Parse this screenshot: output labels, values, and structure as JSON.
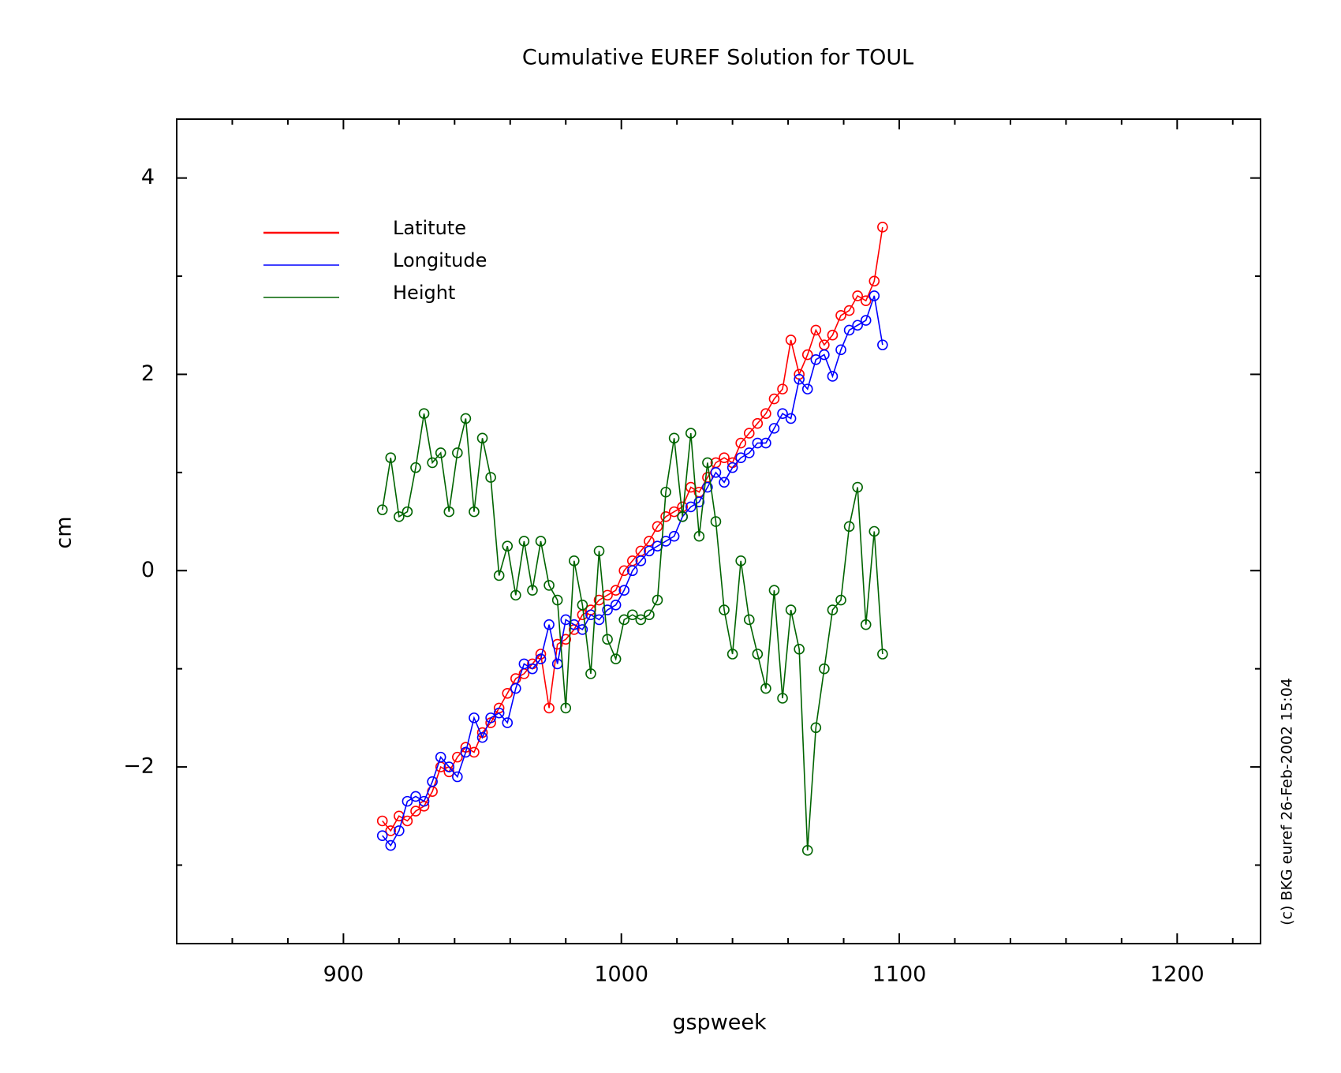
{
  "chart_data": {
    "type": "line",
    "title": "Cumulative EUREF Solution for TOUL",
    "xlabel": "gspweek",
    "ylabel": "cm",
    "annotation": "(c) BKG euref 26-Feb-2002 15:04",
    "x": [
      914,
      917,
      920,
      923,
      926,
      929,
      932,
      935,
      938,
      941,
      944,
      947,
      950,
      953,
      956,
      959,
      962,
      965,
      968,
      971,
      974,
      977,
      980,
      983,
      986,
      989,
      992,
      995,
      998,
      1001,
      1004,
      1007,
      1010,
      1013,
      1016,
      1019,
      1022,
      1025,
      1028,
      1031,
      1034,
      1037,
      1040,
      1043,
      1046,
      1049,
      1052,
      1055,
      1058,
      1061,
      1064,
      1067,
      1070,
      1073,
      1076,
      1079,
      1082,
      1085,
      1088,
      1091,
      1094
    ],
    "series": [
      {
        "name": "Latitute",
        "color": "#ff0000",
        "values": [
          -2.55,
          -2.65,
          -2.5,
          -2.55,
          -2.45,
          -2.4,
          -2.25,
          -2.0,
          -2.05,
          -1.9,
          -1.8,
          -1.85,
          -1.65,
          -1.55,
          -1.4,
          -1.25,
          -1.1,
          -1.05,
          -0.95,
          -0.85,
          -1.4,
          -0.75,
          -0.7,
          -0.6,
          -0.45,
          -0.4,
          -0.3,
          -0.25,
          -0.2,
          0.0,
          0.1,
          0.2,
          0.3,
          0.45,
          0.55,
          0.6,
          0.65,
          0.85,
          0.8,
          0.95,
          1.1,
          1.15,
          1.1,
          1.3,
          1.4,
          1.5,
          1.6,
          1.75,
          1.85,
          2.35,
          2.0,
          2.2,
          2.45,
          2.3,
          2.4,
          2.6,
          2.65,
          2.8,
          2.75,
          2.95,
          3.5
        ]
      },
      {
        "name": "Longitude",
        "color": "#0000ff",
        "values": [
          -2.7,
          -2.8,
          -2.65,
          -2.35,
          -2.3,
          -2.35,
          -2.15,
          -1.9,
          -2.0,
          -2.1,
          -1.85,
          -1.5,
          -1.7,
          -1.5,
          -1.45,
          -1.55,
          -1.2,
          -0.95,
          -1.0,
          -0.9,
          -0.55,
          -0.95,
          -0.5,
          -0.55,
          -0.6,
          -0.45,
          -0.5,
          -0.4,
          -0.35,
          -0.2,
          0.0,
          0.1,
          0.2,
          0.25,
          0.3,
          0.35,
          0.55,
          0.65,
          0.7,
          0.85,
          1.0,
          0.9,
          1.05,
          1.15,
          1.2,
          1.3,
          1.3,
          1.45,
          1.6,
          1.55,
          1.95,
          1.85,
          2.15,
          2.2,
          1.98,
          2.25,
          2.45,
          2.5,
          2.55,
          2.8,
          2.3
        ]
      },
      {
        "name": "Height",
        "color": "#006400",
        "values": [
          0.62,
          1.15,
          0.55,
          0.6,
          1.05,
          1.6,
          1.1,
          1.2,
          0.6,
          1.2,
          1.55,
          0.6,
          1.35,
          0.95,
          -0.05,
          0.25,
          -0.25,
          0.3,
          -0.2,
          0.3,
          -0.15,
          -0.3,
          -1.4,
          0.1,
          -0.35,
          -1.05,
          0.2,
          -0.7,
          -0.9,
          -0.5,
          -0.45,
          -0.5,
          -0.45,
          -0.3,
          0.8,
          1.35,
          0.55,
          1.4,
          0.35,
          1.1,
          0.5,
          -0.4,
          -0.85,
          0.1,
          -0.5,
          -0.85,
          -1.2,
          -0.2,
          -1.3,
          -0.4,
          -0.8,
          -2.85,
          -1.6,
          -1.0,
          -0.4,
          -0.3,
          0.45,
          0.85,
          -0.55,
          0.4,
          -0.85
        ]
      }
    ],
    "xlim": [
      840,
      1230
    ],
    "xticks": [
      900,
      1000,
      1100,
      1200
    ],
    "xminorticks": [
      860,
      880,
      920,
      940,
      960,
      980,
      1020,
      1040,
      1060,
      1080,
      1120,
      1140,
      1160,
      1180,
      1220
    ],
    "ylim": [
      -3.8,
      4.6
    ],
    "yticks": [
      -2,
      0,
      2,
      4
    ],
    "yminorticks": [
      -3,
      -1,
      1,
      3
    ],
    "legend": "upper left",
    "grid": false
  }
}
